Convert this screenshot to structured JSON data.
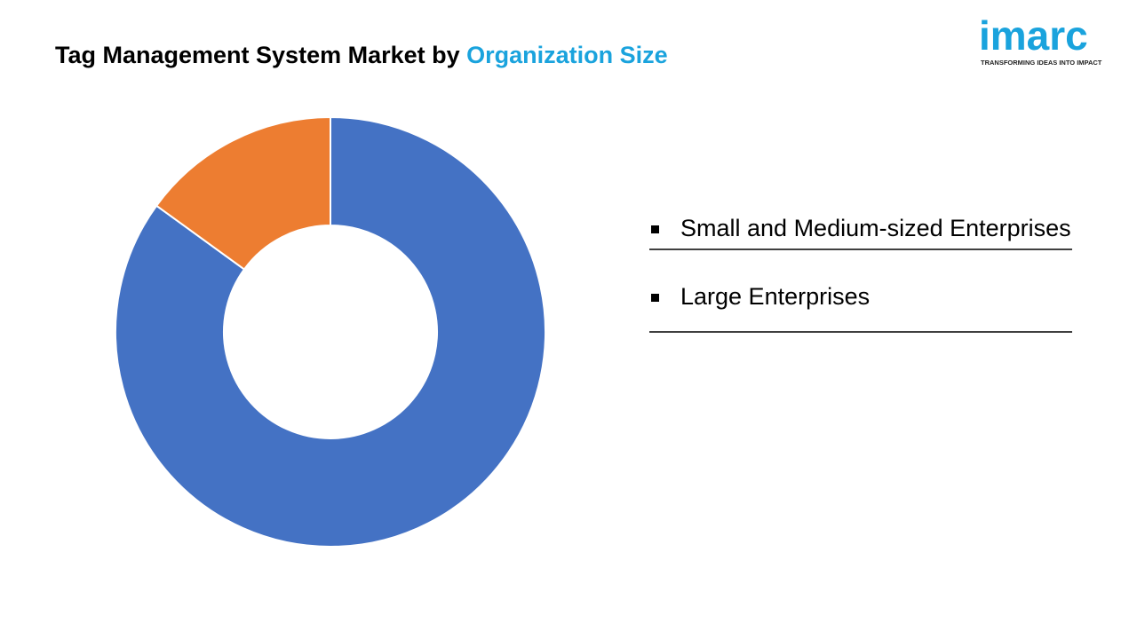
{
  "logo": {
    "name": "imarc",
    "tagline": "TRANSFORMING IDEAS INTO IMPACT"
  },
  "chart_data": {
    "type": "donut",
    "title": "Tag Management System Market by",
    "title_highlight": "Organization Size",
    "categories": [
      "Small and Medium-sized Enterprises",
      "Large Enterprises"
    ],
    "values": [
      85,
      15
    ],
    "colors": [
      "#4472c4",
      "#ed7d31"
    ]
  }
}
